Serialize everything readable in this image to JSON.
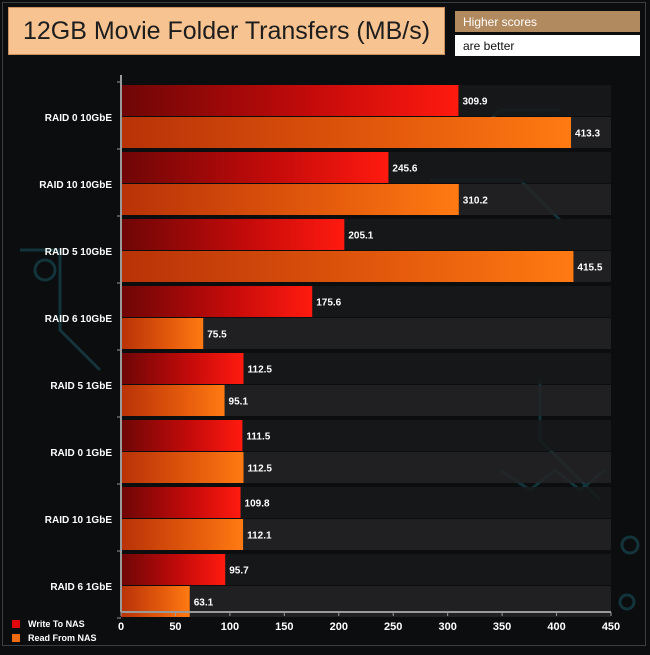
{
  "header": {
    "title": "12GB Movie Folder Transfers (MB/s)",
    "note_line1": "Higher scores",
    "note_line2": "are better"
  },
  "colors": {
    "background": "#0b0d0e",
    "title_bg": "#f6c391",
    "note_top_bg": "#b28a60",
    "write_series": "#e00a0a",
    "read_series": "#f06a10",
    "band": "#1e1f20"
  },
  "chart_data": {
    "type": "bar",
    "orientation": "horizontal",
    "categories": [
      "RAID 0 10GbE",
      "RAID 10 10GbE",
      "RAID 5 10GbE",
      "RAID 6 10GbE",
      "RAID 5 1GbE",
      "RAID 0 1GbE",
      "RAID 10 1GbE",
      "RAID 6 1GbE"
    ],
    "series": [
      {
        "name": "Write To NAS",
        "values": [
          309.9,
          245.6,
          205.1,
          175.6,
          112.5,
          111.5,
          109.8,
          95.7
        ]
      },
      {
        "name": "Read From NAS",
        "values": [
          413.3,
          310.2,
          415.5,
          75.5,
          95.1,
          112.5,
          112.1,
          63.1
        ]
      }
    ],
    "xlim": [
      0,
      450
    ],
    "xticks": [
      0,
      50,
      100,
      150,
      200,
      250,
      300,
      350,
      400,
      450
    ],
    "title": "12GB Movie Folder Transfers (MB/s)",
    "xlabel": "",
    "ylabel": "",
    "legend_position": "bottom-left",
    "grid": false
  }
}
